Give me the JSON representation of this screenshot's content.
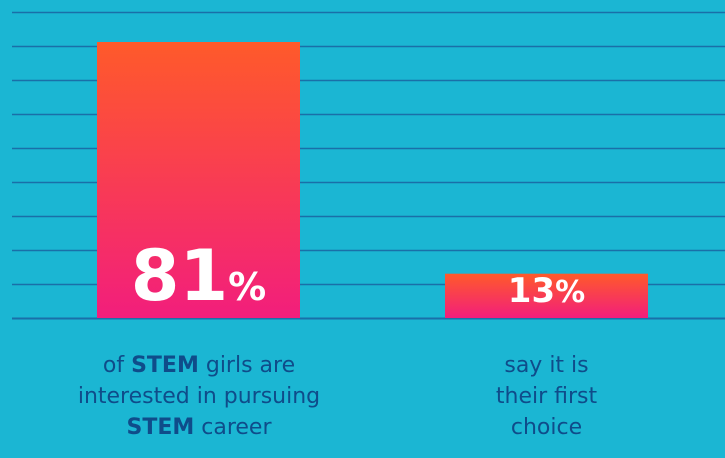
{
  "chart_data": {
    "type": "bar",
    "categories": [
      "STEM girls interested in STEM career",
      "first choice"
    ],
    "values": [
      81,
      13
    ],
    "value_labels": [
      {
        "number": "81",
        "suffix": "%"
      },
      {
        "number": "13",
        "suffix": "%"
      }
    ],
    "ylim": [
      0,
      100
    ],
    "grid": true,
    "captions": [
      {
        "lines": [
          [
            {
              "text": "of ",
              "bold": false
            },
            {
              "text": "STEM",
              "bold": true
            },
            {
              "text": " girls are",
              "bold": false
            }
          ],
          [
            {
              "text": "interested in pursuing",
              "bold": false
            }
          ],
          [
            {
              "text": "STEM",
              "bold": true
            },
            {
              "text": " career",
              "bold": false
            }
          ]
        ]
      },
      {
        "lines": [
          [
            {
              "text": "say it is",
              "bold": false
            }
          ],
          [
            {
              "text": "their first",
              "bold": false
            }
          ],
          [
            {
              "text": "choice",
              "bold": false
            }
          ]
        ]
      }
    ]
  },
  "colors": {
    "background": "#1bb6d3",
    "gridline": "#1a6fa8",
    "bar_top": "#ff5a2a",
    "bar_bottom": "#f21e7c",
    "label_text": "#ffffff",
    "caption_text": "#0f4c8a"
  }
}
